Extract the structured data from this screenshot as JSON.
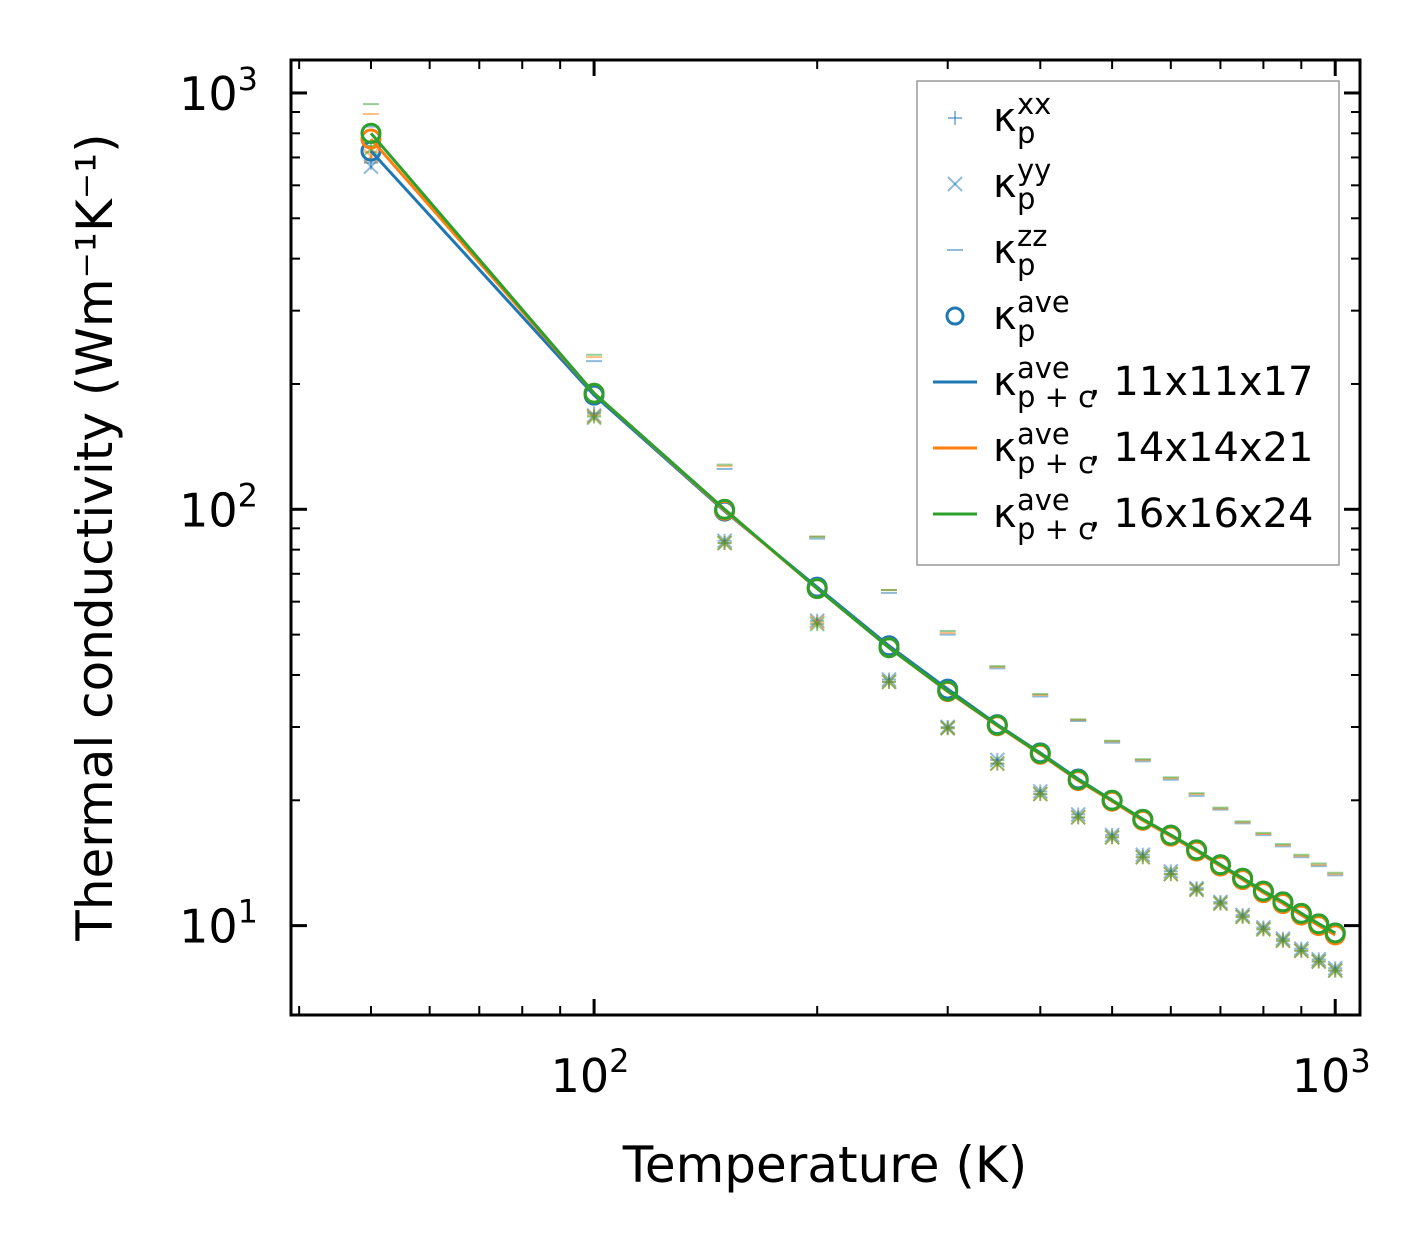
{
  "chart_data": {
    "type": "line",
    "xscale": "log",
    "yscale": "log",
    "xlabel": "Temperature (K)",
    "ylabel": "Thermal conductivity (Wm⁻¹K⁻¹)",
    "xlim": [
      39,
      1080
    ],
    "ylim": [
      6.1,
      1200
    ],
    "x_ticks": [
      {
        "value": 100,
        "base": "10",
        "exp": "2"
      },
      {
        "value": 1000,
        "base": "10",
        "exp": "3"
      }
    ],
    "y_ticks": [
      {
        "value": 10,
        "base": "10",
        "exp": "1"
      },
      {
        "value": 100,
        "base": "10",
        "exp": "2"
      },
      {
        "value": 1000,
        "base": "10",
        "exp": "3"
      }
    ],
    "x": [
      50,
      100,
      150,
      200,
      250,
      300,
      350,
      400,
      450,
      500,
      550,
      600,
      650,
      700,
      750,
      800,
      850,
      900,
      950,
      1000
    ],
    "colors": {
      "mesh1": "#1f77b4",
      "mesh2": "#ff7f0e",
      "mesh3": "#2ca02c"
    },
    "series": [
      {
        "name": "kxx_11",
        "kind": "kxx",
        "mesh": "mesh1",
        "values": [
          680,
          170,
          84,
          54,
          39,
          30,
          25,
          21,
          18.5,
          16.5,
          14.8,
          13.5,
          12.3,
          11.4,
          10.6,
          9.9,
          9.3,
          8.8,
          8.3,
          7.9
        ]
      },
      {
        "name": "kyy_11",
        "kind": "kyy",
        "mesh": "mesh1",
        "values": [
          665,
          168,
          84,
          54,
          39,
          30,
          25,
          21,
          18.5,
          16.5,
          14.8,
          13.5,
          12.3,
          11.4,
          10.6,
          9.9,
          9.3,
          8.8,
          8.3,
          7.9
        ]
      },
      {
        "name": "kzz_11",
        "kind": "kzz",
        "mesh": "mesh1",
        "values": [
          830,
          227,
          125,
          85,
          63,
          50,
          41.5,
          35.5,
          31,
          27.5,
          24.8,
          22.4,
          20.5,
          19,
          17.6,
          16.5,
          15.5,
          14.6,
          13.9,
          13.2
        ]
      },
      {
        "name": "kave_11",
        "kind": "kave",
        "mesh": "mesh1",
        "values": [
          725,
          188,
          99,
          65,
          47,
          37,
          30.4,
          26,
          22.5,
          20,
          18,
          16.5,
          15.2,
          14,
          13,
          12.1,
          11.4,
          10.7,
          10.1,
          9.6
        ]
      },
      {
        "name": "kxx_14",
        "kind": "kxx",
        "mesh": "mesh2",
        "values": [
          720,
          168,
          83,
          53.5,
          38.5,
          29.8,
          24.5,
          20.7,
          18.2,
          16.3,
          14.6,
          13.3,
          12.2,
          11.3,
          10.5,
          9.8,
          9.2,
          8.7,
          8.2,
          7.8
        ]
      },
      {
        "name": "kyy_14",
        "kind": "kyy",
        "mesh": "mesh2",
        "values": [
          705,
          167,
          83,
          53.5,
          38.5,
          29.8,
          24.5,
          20.7,
          18.2,
          16.3,
          14.6,
          13.3,
          12.2,
          11.3,
          10.5,
          9.8,
          9.2,
          8.7,
          8.2,
          7.8
        ]
      },
      {
        "name": "kzz_14",
        "kind": "kzz",
        "mesh": "mesh2",
        "values": [
          890,
          232,
          127,
          86,
          64,
          50.5,
          41.8,
          35.8,
          31.2,
          27.7,
          25,
          22.6,
          20.7,
          19.1,
          17.7,
          16.6,
          15.6,
          14.7,
          14,
          13.3
        ]
      },
      {
        "name": "kave_14",
        "kind": "kave",
        "mesh": "mesh2",
        "values": [
          775,
          190,
          99.5,
          64.5,
          46.5,
          36.5,
          30.2,
          25.8,
          22.3,
          19.9,
          17.9,
          16.4,
          15.1,
          13.9,
          12.9,
          12,
          11.3,
          10.6,
          10,
          9.5
        ]
      },
      {
        "name": "kxx_16",
        "kind": "kxx",
        "mesh": "mesh3",
        "values": [
          745,
          167,
          83,
          53,
          38.5,
          29.8,
          24.5,
          20.7,
          18.2,
          16.3,
          14.6,
          13.3,
          12.2,
          11.3,
          10.5,
          9.8,
          9.2,
          8.7,
          8.2,
          7.8
        ]
      },
      {
        "name": "kyy_16",
        "kind": "kyy",
        "mesh": "mesh3",
        "values": [
          735,
          166,
          83,
          53,
          38.5,
          29.8,
          24.5,
          20.7,
          18.2,
          16.3,
          14.6,
          13.3,
          12.2,
          11.3,
          10.5,
          9.8,
          9.2,
          8.7,
          8.2,
          7.8
        ]
      },
      {
        "name": "kzz_16",
        "kind": "kzz",
        "mesh": "mesh3",
        "values": [
          940,
          235,
          128,
          86,
          64,
          51,
          42,
          36,
          31.3,
          27.8,
          25.1,
          22.7,
          20.8,
          19.2,
          17.8,
          16.7,
          15.7,
          14.8,
          14.1,
          13.4
        ]
      },
      {
        "name": "kave_16",
        "kind": "kave",
        "mesh": "mesh3",
        "values": [
          800,
          190,
          100,
          64.5,
          46.5,
          36.6,
          30.3,
          25.9,
          22.4,
          20,
          18,
          16.5,
          15.2,
          14,
          13,
          12.1,
          11.4,
          10.7,
          10.1,
          9.6
        ]
      }
    ],
    "legend": {
      "placement": "top-right",
      "entries": [
        {
          "marker": "plus",
          "color": "#1f77b4",
          "alpha": 0.5,
          "base": "κ",
          "sub": "p",
          "sup": "xx",
          "suffix": ""
        },
        {
          "marker": "x",
          "color": "#1f77b4",
          "alpha": 0.5,
          "base": "κ",
          "sub": "p",
          "sup": "yy",
          "suffix": ""
        },
        {
          "marker": "hline",
          "color": "#1f77b4",
          "alpha": 0.5,
          "base": "κ",
          "sub": "p",
          "sup": "zz",
          "suffix": ""
        },
        {
          "marker": "circle",
          "color": "#1f77b4",
          "alpha": 1,
          "base": "κ",
          "sub": "p",
          "sup": "ave",
          "suffix": ""
        },
        {
          "marker": "line",
          "color": "#1f77b4",
          "alpha": 1,
          "base": "κ",
          "sub": "p + c",
          "sup": "ave",
          "suffix": ", 11x11x17"
        },
        {
          "marker": "line",
          "color": "#ff7f0e",
          "alpha": 1,
          "base": "κ",
          "sub": "p + c",
          "sup": "ave",
          "suffix": ", 14x14x21"
        },
        {
          "marker": "line",
          "color": "#2ca02c",
          "alpha": 1,
          "base": "κ",
          "sub": "p + c",
          "sup": "ave",
          "suffix": ", 16x16x24"
        }
      ]
    }
  }
}
